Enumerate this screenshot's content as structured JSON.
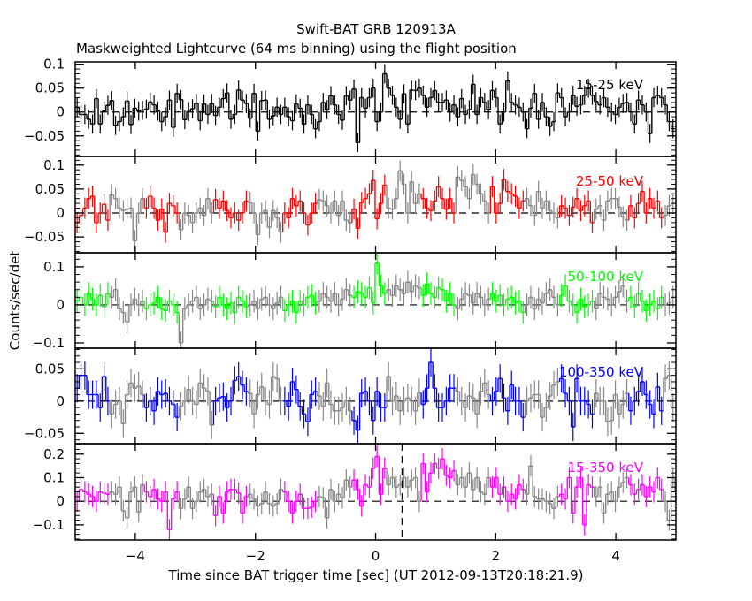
{
  "chart_data": {
    "type": "line",
    "title": "Swift-BAT GRB 120913A",
    "subtitle": "Maskweighted Lightcurve (64 ms binning) using the flight position",
    "xlabel": "Time since BAT trigger time [sec] (UT 2012-09-13T20:18:21.9)",
    "ylabel": "Counts/sec/det",
    "xlim": [
      -5,
      5
    ],
    "xticks": [
      -4,
      -2,
      0,
      2,
      4
    ],
    "xtick_labels": [
      "−4",
      "−2",
      "0",
      "2",
      "4"
    ],
    "t0": -5,
    "bin_width": 0.064,
    "gray_color": "#888888",
    "vline_annotation": 0.44,
    "panels": [
      {
        "name": "15-25 keV",
        "color": "#000000",
        "ylim": [
          -0.093,
          0.105
        ],
        "yticks": [
          0.1,
          0.05,
          0,
          -0.05
        ],
        "ytick_labels": [
          "0.1",
          "0.05",
          "0",
          "−0.05"
        ],
        "minor_step": 0.01,
        "error": 0.02,
        "values": [
          0.01,
          -0.005,
          -0.005,
          -0.015,
          -0.025,
          0.028,
          -0.025,
          0.002,
          0.014,
          0.024,
          -0.028,
          -0.02,
          -0.01,
          0.023,
          -0.026,
          0.008,
          0.002,
          0.004,
          0.006,
          0.021,
          0.015,
          0.002,
          -0.02,
          -0.01,
          0.025,
          -0.032,
          0.039,
          0.026,
          -0.016,
          0.001,
          0.007,
          0.018,
          -0.018,
          0.017,
          -0.005,
          0.018,
          -0.007,
          0.01,
          0.028,
          0.04,
          -0.015,
          -0.005,
          0.046,
          0.025,
          0.018,
          -0.013,
          0.039,
          -0.04,
          0.024,
          0.025,
          -0.015,
          -0.008,
          0.01,
          -0.005,
          0.01,
          -0.01,
          -0.018,
          0.017,
          0.008,
          -0.025,
          0.015,
          -0.005,
          -0.035,
          -0.02,
          0.02,
          0.005,
          0.034,
          0.015,
          -0.005,
          -0.017,
          0.034,
          0.025,
          0.048,
          -0.064,
          0.03,
          0.008,
          0.03,
          0.05,
          -0.02,
          0.0,
          0.08,
          0.05,
          0.035,
          0.01,
          -0.015,
          0.038,
          -0.025,
          0.046,
          0.045,
          0.05,
          0.035,
          0.01,
          0.03,
          0.045,
          0.02,
          0.02,
          0.025,
          0.0,
          0.015,
          -0.01,
          0.028,
          -0.005,
          0.005,
          0.058,
          -0.005,
          0.03,
          0.02,
          0.005,
          0.045,
          0.03,
          -0.025,
          0.0,
          0.065,
          0.02,
          0.015,
          0.01,
          0.0,
          -0.035,
          0.008,
          0.039,
          -0.015,
          0.02,
          -0.01,
          -0.03,
          -0.02,
          0.04,
          0.03,
          -0.01,
          0.0,
          0.035,
          0.012,
          0.015,
          0.035,
          0.05,
          0.035,
          0.022,
          0.015,
          0.03,
          0.01,
          0.0,
          -0.005,
          0.01,
          0.018,
          0.02,
          0.0,
          -0.025,
          0.025,
          0.015,
          0.0,
          -0.045,
          0.03,
          0.035,
          0.03,
          0.015,
          -0.02,
          -0.035
        ]
      },
      {
        "name": "25-50 keV",
        "color": "#ff0000",
        "ylim": [
          -0.083,
          0.118
        ],
        "yticks": [
          0.1,
          0.05,
          0,
          -0.05
        ],
        "ytick_labels": [
          "0.1",
          "0.05",
          "0",
          "−0.05"
        ],
        "minor_step": 0.01,
        "error": 0.022,
        "values": [
          -0.02,
          -0.005,
          0.01,
          0.03,
          0.035,
          -0.02,
          0.0,
          0.018,
          -0.015,
          0.038,
          0.03,
          0.01,
          0.005,
          0.008,
          0.01,
          -0.058,
          0.0,
          0.03,
          0.01,
          0.035,
          0.01,
          -0.015,
          0.008,
          -0.04,
          0.02,
          0.015,
          0.0,
          -0.035,
          0.0,
          -0.005,
          -0.02,
          0.0,
          0.01,
          -0.005,
          0.03,
          0.0,
          0.028,
          0.01,
          0.025,
          0.005,
          -0.01,
          0.0,
          -0.015,
          0.0,
          0.025,
          0.022,
          0.0,
          -0.045,
          0.0,
          0.005,
          -0.03,
          0.005,
          -0.01,
          -0.04,
          0.0,
          -0.01,
          0.03,
          0.015,
          0.025,
          0.0,
          -0.025,
          0.0,
          0.02,
          0.028,
          0.025,
          0.015,
          0.0,
          0.025,
          -0.005,
          0.025,
          -0.015,
          -0.02,
          0.008,
          -0.032,
          0.022,
          0.03,
          0.04,
          0.068,
          -0.012,
          0.02,
          0.058,
          0.01,
          0.008,
          0.03,
          0.088,
          0.06,
          0.0,
          0.065,
          0.02,
          0.04,
          0.03,
          0.01,
          0.005,
          0.025,
          0.055,
          0.03,
          0.008,
          0.03,
          0.0,
          0.075,
          0.068,
          0.055,
          0.03,
          0.08,
          0.06,
          0.04,
          0.025,
          0.0,
          0.055,
          0.0,
          0.02,
          0.07,
          0.045,
          0.04,
          0.035,
          0.01,
          0.025,
          0.03,
          0.015,
          -0.005,
          0.045,
          0.01,
          0.025,
          0.005,
          0.0,
          -0.01,
          0.015,
          0.01,
          -0.005,
          0.012,
          0.03,
          0.005,
          0.015,
          0.025,
          -0.02,
          0.008,
          0.015,
          -0.015,
          0.025,
          0.03,
          0.03,
          0.012,
          -0.008,
          -0.015,
          0.015,
          -0.01,
          0.02,
          0.045,
          0.0,
          0.03,
          0.01,
          0.025,
          -0.01,
          -0.005,
          0.015,
          0.02
        ]
      },
      {
        "name": "50-100 keV",
        "color": "#00ff00",
        "ylim": [
          -0.114,
          0.137
        ],
        "yticks": [
          0.1,
          0,
          -0.1
        ],
        "ytick_labels": [
          "0.1",
          "0",
          "−0.1"
        ],
        "minor_step": 0.02,
        "error": 0.03,
        "values": [
          0.01,
          0.02,
          0.0,
          0.03,
          0.015,
          0.0,
          0.025,
          -0.005,
          0.03,
          0.02,
          0.04,
          -0.01,
          -0.02,
          -0.045,
          0.0,
          0.015,
          0.0,
          0.01,
          -0.01,
          0.0,
          0.005,
          0.02,
          -0.01,
          -0.015,
          0.01,
          0.0,
          -0.02,
          -0.1,
          -0.01,
          0.0,
          0.01,
          0.02,
          -0.01,
          0.0,
          0.015,
          0.01,
          -0.005,
          0.02,
          0.0,
          -0.01,
          0.005,
          -0.02,
          0.02,
          0.01,
          -0.005,
          0.0,
          0.01,
          -0.01,
          0.015,
          0.02,
          0.0,
          -0.01,
          0.005,
          0.02,
          -0.015,
          0.0,
          0.01,
          -0.02,
          0.01,
          0.0,
          0.02,
          0.025,
          0.005,
          0.01,
          0.03,
          0.02,
          0.01,
          0.03,
          0.0,
          0.015,
          0.04,
          0.025,
          0.02,
          0.035,
          0.03,
          0.02,
          0.045,
          0.005,
          0.11,
          0.05,
          0.03,
          0.04,
          0.025,
          0.05,
          0.04,
          0.03,
          0.06,
          0.035,
          0.05,
          0.045,
          0.025,
          0.055,
          0.03,
          0.02,
          0.045,
          0.04,
          0.01,
          0.03,
          0.0,
          -0.01,
          0.015,
          0.03,
          0.025,
          0.005,
          0.03,
          0.02,
          0.0,
          0.015,
          0.03,
          0.01,
          0.025,
          0.0,
          0.015,
          0.02,
          0.005,
          0.01,
          -0.02,
          0.0,
          0.02,
          -0.01,
          0.015,
          0.005,
          0.03,
          0.04,
          0.02,
          0.0,
          0.025,
          0.05,
          0.01,
          0.0,
          -0.02,
          0.015,
          -0.005,
          0.0,
          0.01,
          -0.01,
          0.03,
          0.02,
          0.015,
          0.0,
          0.02,
          0.035,
          0.05,
          0.01,
          0.02,
          -0.005,
          0.03,
          0.01,
          -0.015,
          0.0,
          0.01,
          -0.01,
          0.02,
          0.0,
          0.005,
          0.02
        ]
      },
      {
        "name": "100-350 keV",
        "color": "#0000ff",
        "ylim": [
          -0.066,
          0.082
        ],
        "yticks": [
          0.05,
          0,
          -0.05
        ],
        "ytick_labels": [
          "0.05",
          "0",
          "−0.05"
        ],
        "minor_step": 0.01,
        "error": 0.022,
        "values": [
          0.02,
          0.04,
          0.04,
          0.01,
          0.01,
          0.01,
          -0.01,
          0.038,
          0.0,
          -0.02,
          -0.005,
          0.0,
          -0.035,
          0.01,
          0.028,
          0.02,
          0.023,
          0.01,
          -0.01,
          0.0,
          -0.015,
          0.015,
          0.01,
          0.012,
          0.0,
          -0.005,
          -0.025,
          -0.008,
          0.0,
          0.018,
          0.0,
          -0.005,
          0.028,
          0.02,
          0.015,
          -0.037,
          0.0,
          0.005,
          0.007,
          -0.01,
          0.0,
          0.032,
          0.038,
          0.025,
          0.015,
          0.012,
          -0.02,
          0.01,
          0.022,
          0.0,
          -0.005,
          0.038,
          0.035,
          0.0,
          0.0,
          -0.008,
          0.03,
          0.018,
          -0.008,
          -0.02,
          -0.032,
          0.01,
          0.015,
          0.008,
          -0.008,
          0.028,
          -0.005,
          -0.015,
          -0.015,
          -0.01,
          0.0,
          -0.015,
          -0.03,
          -0.045,
          0.012,
          0.015,
          0.0,
          -0.03,
          0.015,
          -0.01,
          -0.01,
          0.038,
          0.0,
          0.008,
          -0.015,
          0.0,
          0.005,
          0.0,
          -0.015,
          0.013,
          -0.005,
          0.02,
          0.06,
          0.02,
          -0.01,
          -0.01,
          0.0,
          0.02,
          0.02,
          0.015,
          0.0,
          -0.01,
          0.008,
          0.005,
          -0.02,
          0.015,
          0.028,
          0.01,
          0.0,
          0.015,
          0.035,
          0.005,
          -0.015,
          0.025,
          0.0,
          0.0,
          -0.025,
          0.0,
          0.005,
          0.01,
          0.01,
          -0.025,
          -0.01,
          0.008,
          0.025,
          0.03,
          0.035,
          0.012,
          0.0,
          -0.04,
          0.035,
          0.0,
          0.0,
          -0.005,
          -0.02,
          0.012,
          0.0,
          0.0,
          -0.032,
          -0.03,
          0.01,
          -0.02,
          -0.005,
          0.012,
          -0.015,
          0.0,
          0.015,
          0.03,
          0.01,
          -0.005,
          -0.02,
          0.022,
          -0.015,
          0.035,
          0.04,
          -0.01
        ]
      },
      {
        "name": "15-350 keV",
        "color": "#ff00ff",
        "ylim": [
          -0.164,
          0.244
        ],
        "yticks": [
          0.2,
          0.1,
          0,
          -0.1
        ],
        "ytick_labels": [
          "0.2",
          "0.1",
          "0",
          "−0.1"
        ],
        "minor_step": 0.02,
        "error": 0.045,
        "values": [
          0.0,
          0.05,
          0.04,
          0.03,
          0.02,
          0.0,
          0.04,
          0.035,
          0.03,
          0.04,
          0.03,
          0.06,
          -0.04,
          -0.07,
          0.04,
          0.06,
          -0.045,
          0.07,
          0.04,
          0.02,
          0.05,
          0.01,
          0.0,
          0.04,
          -0.12,
          0.01,
          0.04,
          -0.03,
          0.01,
          0.06,
          -0.03,
          0.0,
          0.04,
          0.05,
          0.02,
          0.03,
          -0.06,
          0.02,
          -0.05,
          0.04,
          0.05,
          0.05,
          0.035,
          -0.05,
          0.02,
          0.03,
          0.01,
          -0.02,
          -0.01,
          0.04,
          -0.01,
          -0.02,
          -0.01,
          0.05,
          0.04,
          0.0,
          -0.05,
          0.0,
          0.03,
          -0.03,
          -0.03,
          -0.025,
          0.0,
          0.02,
          0.015,
          -0.07,
          0.05,
          0.0,
          0.03,
          0.015,
          0.09,
          0.06,
          0.09,
          0.05,
          -0.02,
          0.07,
          0.06,
          0.14,
          0.19,
          0.03,
          0.14,
          0.07,
          0.1,
          0.06,
          0.07,
          0.1,
          0.06,
          0.09,
          0.1,
          0.0,
          0.16,
          0.04,
          0.12,
          0.16,
          0.14,
          0.18,
          0.11,
          0.1,
          0.13,
          0.07,
          0.1,
          0.06,
          0.12,
          0.05,
          0.1,
          0.04,
          0.03,
          0.1,
          0.06,
          0.1,
          0.03,
          0.06,
          0.0,
          0.03,
          0.01,
          0.07,
          0.05,
          0.03,
          0.15,
          0.02,
          0.01,
          0.01,
          0.0,
          -0.01,
          -0.03,
          0.02,
          0.03,
          0.01,
          0.1,
          -0.05,
          0.06,
          0.1,
          -0.1,
          0.07,
          0.06,
          0.02,
          0.06,
          -0.05,
          0.03,
          0.04,
          0.0,
          0.06,
          0.08,
          0.1,
          0.07,
          0.03,
          0.05,
          0.07,
          0.02,
          0.06,
          0.04,
          0.1,
          0.05,
          0.0,
          -0.08,
          0.1,
          0.04,
          0.02,
          0.02,
          0.0
        ]
      }
    ]
  }
}
